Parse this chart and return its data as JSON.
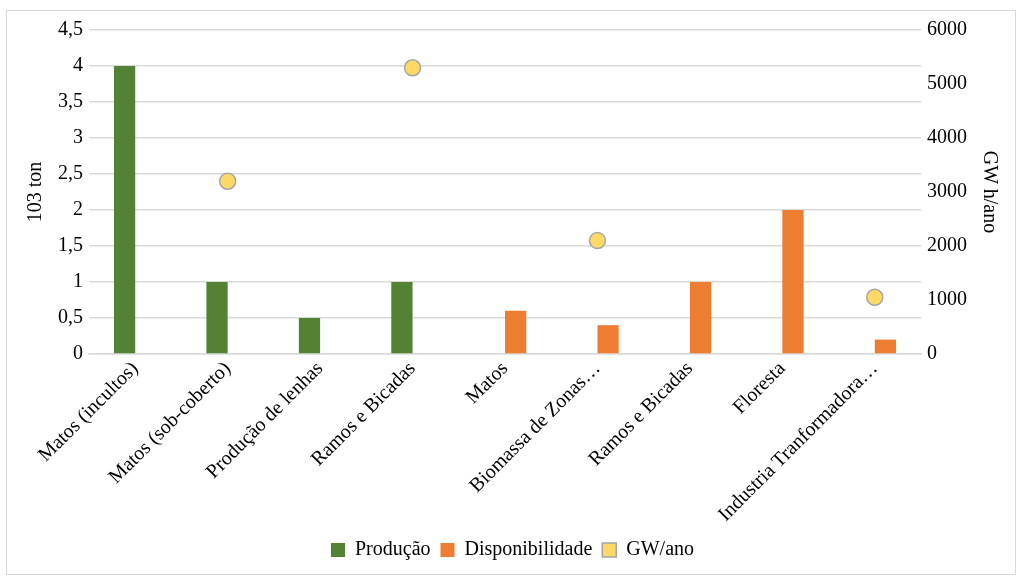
{
  "chart_data": {
    "type": "bar",
    "ylabel": "103 ton",
    "y2label": "GW h/ano",
    "categories": [
      "Matos (incultos)",
      "Matos (sob-coberto)",
      "Produção de lenhas",
      "Ramos e Bicadas",
      "Matos",
      "Biomassa de Zonas…",
      "Ramos e Bicadas",
      "Floresta",
      "Industria Tranformadora…"
    ],
    "series": [
      {
        "name": "Produção",
        "color": "#548235",
        "values": [
          4,
          1,
          0.5,
          1,
          null,
          null,
          null,
          null,
          null
        ]
      },
      {
        "name": "Disponibilidade",
        "color": "#ed7d31",
        "values": [
          null,
          null,
          null,
          null,
          0.6,
          0.4,
          1,
          2,
          0.2
        ]
      },
      {
        "name": "GW/ano",
        "type": "scatter",
        "axis": "y2",
        "color": "#ffd966",
        "x": [
          "Matos (sob-coberto)",
          "Ramos e Bicadas",
          "Biomassa de Zonas…",
          "Industria Tranformadora…"
        ],
        "values": [
          3200,
          5300,
          2100,
          1050
        ]
      }
    ],
    "ylim": [
      0,
      4.5
    ],
    "yticks": [
      0,
      {
        "value": 0.5,
        "label": "0,5"
      },
      1,
      {
        "value": 1.5,
        "label": "1,5"
      },
      2,
      {
        "value": 2.5,
        "label": "2,5"
      },
      3,
      {
        "value": 3.5,
        "label": "3,5"
      },
      4,
      {
        "value": 4.5,
        "label": "4,5"
      }
    ],
    "y2lim": [
      0,
      6000
    ],
    "y2ticks": [
      0,
      1000,
      2000,
      3000,
      4000,
      5000,
      6000
    ],
    "grid": "y",
    "legend": "bottom",
    "marker": "circle"
  }
}
